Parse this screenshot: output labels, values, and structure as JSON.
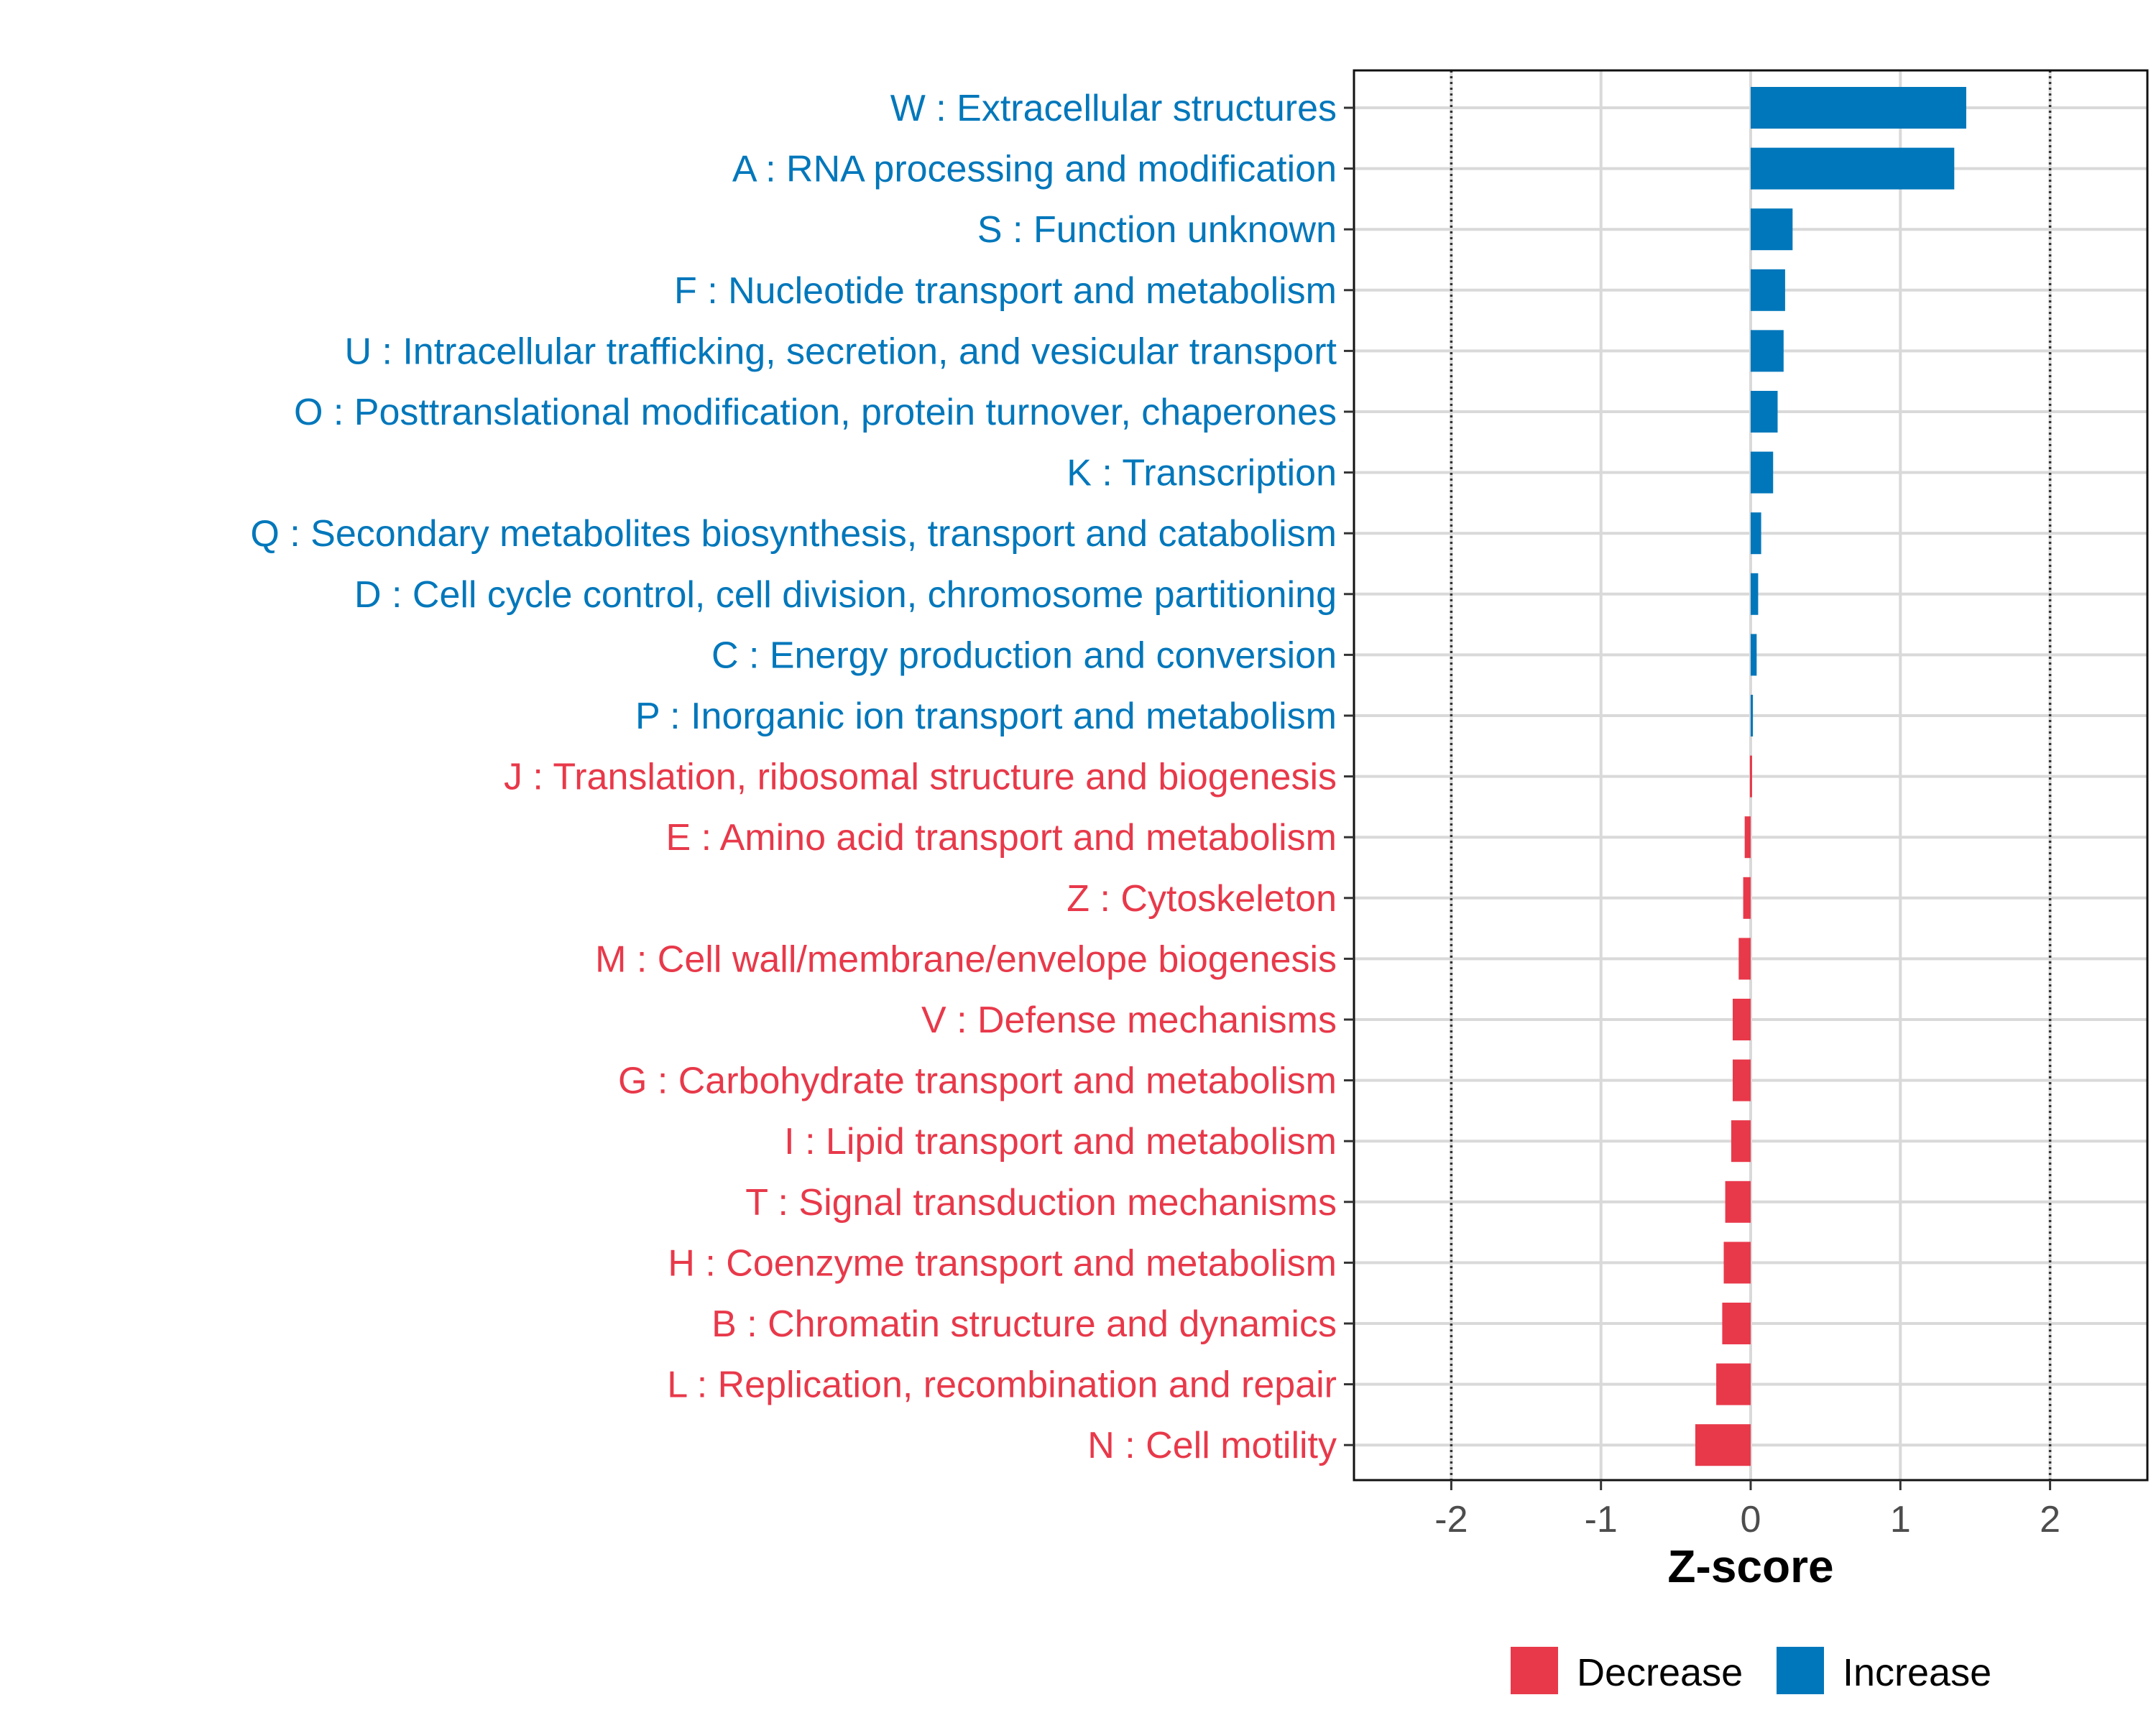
{
  "chart_data": {
    "type": "bar",
    "orientation": "horizontal",
    "xlabel": "Z-score",
    "ylabel": "",
    "xlim": [
      -2.65,
      2.65
    ],
    "xticks": [
      -2,
      -1,
      0,
      1,
      2
    ],
    "xtick_labels": [
      "-2",
      "-1",
      "0",
      "1",
      "2"
    ],
    "reference_lines": [
      -2,
      2
    ],
    "grid": true,
    "legend_position": "bottom",
    "colors": {
      "Decrease": "#E8394A",
      "Increase": "#0077BB"
    },
    "legend": [
      {
        "label": "Decrease",
        "color": "#E8394A"
      },
      {
        "label": "Increase",
        "color": "#0077BB"
      }
    ],
    "categories": [
      "W : Extracellular structures",
      "A : RNA processing and modification",
      "S : Function unknown",
      "F : Nucleotide transport and metabolism",
      "U : Intracellular trafficking, secretion, and vesicular transport",
      "O : Posttranslational modification, protein turnover, chaperones",
      "K : Transcription",
      "Q : Secondary metabolites biosynthesis, transport and catabolism",
      "D : Cell cycle control, cell division, chromosome partitioning",
      "C : Energy production and conversion",
      "P : Inorganic ion transport and metabolism",
      "J : Translation, ribosomal structure and biogenesis",
      "E : Amino acid transport and metabolism",
      "Z : Cytoskeleton",
      "M : Cell wall/membrane/envelope biogenesis",
      "V : Defense mechanisms",
      "G : Carbohydrate transport and metabolism",
      "I : Lipid transport and metabolism",
      "T : Signal transduction mechanisms",
      "H : Coenzyme transport and metabolism",
      "B : Chromatin structure and dynamics",
      "L : Replication, recombination and repair",
      "N : Cell motility"
    ],
    "values": [
      1.44,
      1.36,
      0.28,
      0.23,
      0.22,
      0.18,
      0.15,
      0.07,
      0.05,
      0.04,
      0.015,
      -0.005,
      -0.04,
      -0.05,
      -0.08,
      -0.12,
      -0.12,
      -0.13,
      -0.17,
      -0.18,
      -0.19,
      -0.23,
      -0.37
    ],
    "series_assignment": [
      "Increase",
      "Increase",
      "Increase",
      "Increase",
      "Increase",
      "Increase",
      "Increase",
      "Increase",
      "Increase",
      "Increase",
      "Increase",
      "Decrease",
      "Decrease",
      "Decrease",
      "Decrease",
      "Decrease",
      "Decrease",
      "Decrease",
      "Decrease",
      "Decrease",
      "Decrease",
      "Decrease",
      "Decrease"
    ]
  }
}
